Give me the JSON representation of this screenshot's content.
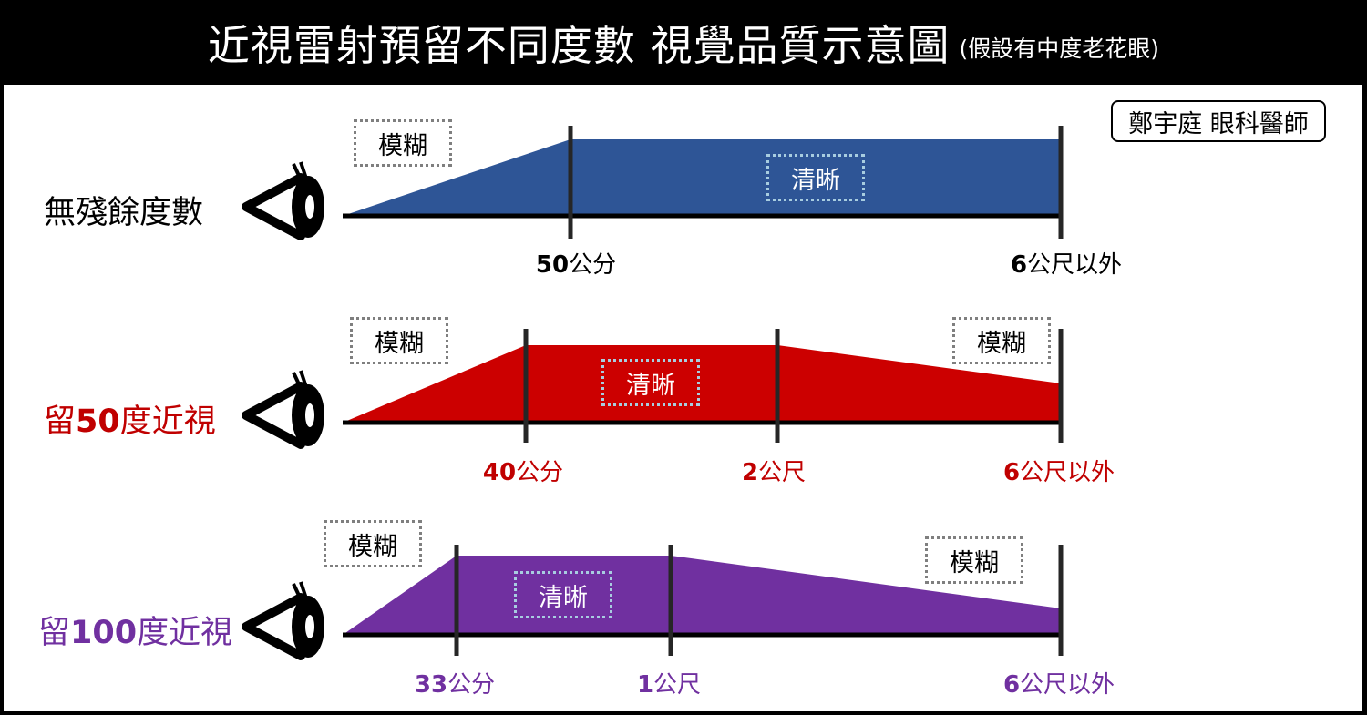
{
  "title": "近視雷射預留不同度數 視覺品質示意圖",
  "subtitle": "(假設有中度老花眼)",
  "author": "鄭宇庭 眼科醫師",
  "colors": {
    "row1": "#2e5596",
    "row2": "#cc0000",
    "row3": "#7030a0",
    "row2_text": "#c00000",
    "row3_text": "#7030a0"
  },
  "rows": [
    {
      "label": "無殘餘度數",
      "profile": "ramp-flat",
      "tags": {
        "blur_left": "模糊",
        "clear": "清晰"
      },
      "distances": [
        {
          "num": "50",
          "unit": "公分"
        },
        {
          "num": "6",
          "unit": "公尺以外"
        }
      ]
    },
    {
      "label_num": "50",
      "label_pre": "留",
      "label_post": "度近視",
      "profile": "ramp-flat-decline",
      "tags": {
        "blur_left": "模糊",
        "clear": "清晰",
        "blur_right": "模糊"
      },
      "distances": [
        {
          "num": "40",
          "unit": "公分"
        },
        {
          "num": "2",
          "unit": "公尺"
        },
        {
          "num": "6",
          "unit": "公尺以外"
        }
      ]
    },
    {
      "label_num": "100",
      "label_pre": "留",
      "label_post": "度近視",
      "profile": "ramp-flat-decline",
      "tags": {
        "blur_left": "模糊",
        "clear": "清晰",
        "blur_right": "模糊"
      },
      "distances": [
        {
          "num": "33",
          "unit": "公分"
        },
        {
          "num": "1",
          "unit": "公尺"
        },
        {
          "num": "6",
          "unit": "公尺以外"
        }
      ]
    }
  ]
}
